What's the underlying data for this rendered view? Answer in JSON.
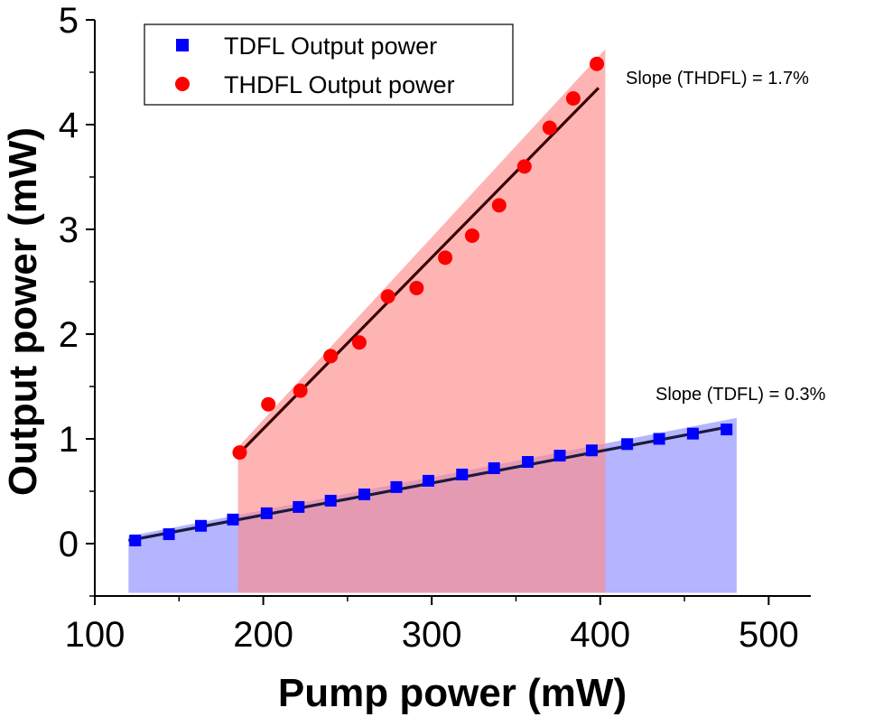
{
  "chart_data": {
    "type": "scatter",
    "title": "",
    "xlabel": "Pump power (mW)",
    "ylabel": "Output power (mW)",
    "xlim": [
      100,
      525
    ],
    "ylim": [
      -0.5,
      5
    ],
    "xticks": [
      100,
      200,
      300,
      400,
      500
    ],
    "xtick_labels": [
      "100",
      "200",
      "300",
      "400",
      "500"
    ],
    "yticks": [
      0,
      1,
      2,
      3,
      4,
      5
    ],
    "ytick_labels": [
      "0",
      "1",
      "2",
      "3",
      "4",
      "5"
    ],
    "legend_position": "top-left",
    "series": [
      {
        "name": "TDFL Output power",
        "marker": "square",
        "color": "#0000ff",
        "fill_color": "#8c8cff",
        "x": [
          124,
          144,
          163,
          182,
          202,
          221,
          240,
          260,
          279,
          298,
          318,
          337,
          357,
          376,
          395,
          416,
          435,
          455,
          475
        ],
        "y": [
          0.03,
          0.09,
          0.17,
          0.23,
          0.29,
          0.35,
          0.41,
          0.47,
          0.54,
          0.6,
          0.66,
          0.72,
          0.78,
          0.84,
          0.89,
          0.95,
          1.0,
          1.05,
          1.09
        ],
        "fit": {
          "x": [
            120,
            478
          ],
          "y": [
            0.03,
            1.12
          ]
        },
        "band": {
          "x": [
            120,
            481
          ],
          "y_upper": [
            0.07,
            1.2
          ],
          "y_lower": -0.47
        }
      },
      {
        "name": "THDFL Output power",
        "marker": "circle",
        "color": "#ff0000",
        "fill_color": "#ff8c8c",
        "x": [
          186,
          203,
          222,
          240,
          257,
          274,
          291,
          308,
          324,
          340,
          355,
          370,
          384,
          398
        ],
        "y": [
          0.87,
          1.33,
          1.46,
          1.79,
          1.92,
          2.36,
          2.44,
          2.73,
          2.94,
          3.23,
          3.6,
          3.97,
          4.25,
          4.58
        ],
        "fit": {
          "x": [
            185,
            399
          ],
          "y": [
            0.85,
            4.35
          ]
        },
        "band": {
          "x": [
            185,
            403
          ],
          "y_upper": [
            0.92,
            4.72
          ],
          "y_lower": -0.47
        }
      }
    ],
    "annotations": [
      {
        "text": "Slope (THDFL) = 1.7%",
        "x": 413,
        "y": 4.45
      },
      {
        "text": "Slope (TDFL) = 0.3%",
        "x": 412,
        "y": 1.38
      }
    ]
  }
}
